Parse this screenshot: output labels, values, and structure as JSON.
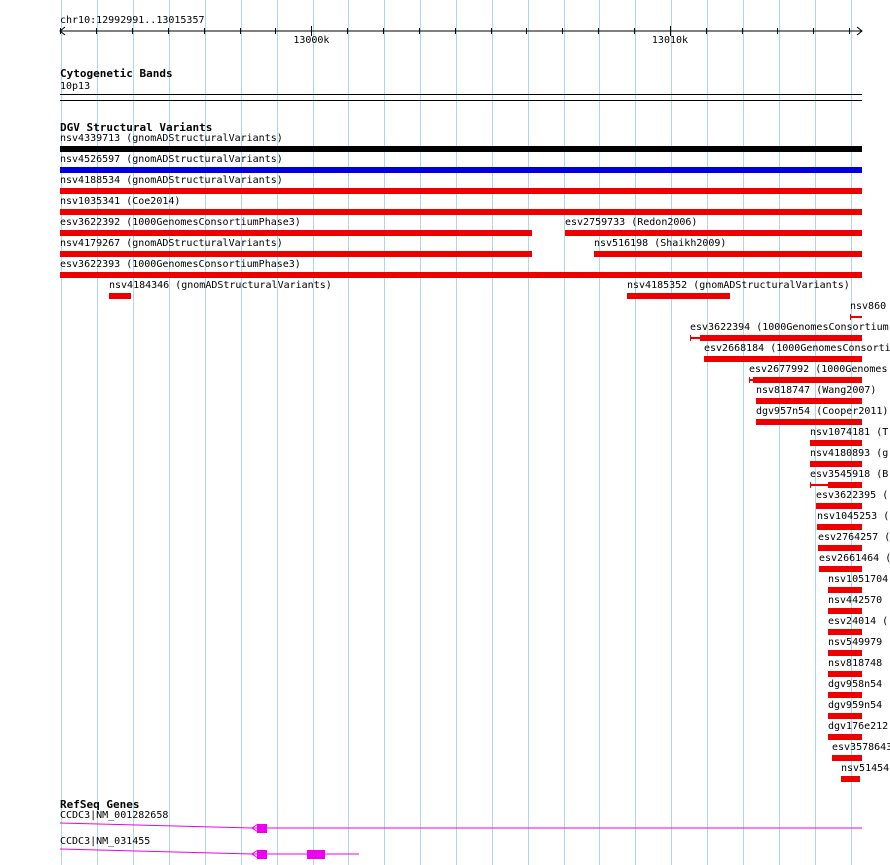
{
  "ruler": {
    "location": "chr10:12992991..13015357",
    "tick_labels": [
      "13000k",
      "13010k"
    ]
  },
  "cytoband": {
    "title": "Cytogenetic Bands",
    "band": "10p13"
  },
  "dgv": {
    "title": "DGV Structural Variants",
    "colors": {
      "default": "#ee0000",
      "black": "#000000",
      "blue": "#0000dd"
    },
    "features": [
      {
        "label": "nsv4339713 (gnomADStructuralVariants)",
        "start": 12992991,
        "end": 13015357,
        "color": "black"
      },
      {
        "label": "nsv4526597 (gnomADStructuralVariants)",
        "start": 12992991,
        "end": 13015357,
        "color": "blue"
      },
      {
        "label": "nsv4188534 (gnomADStructuralVariants)",
        "start": 12992991,
        "end": 13015357
      },
      {
        "label": "nsv1035341 (Coe2014)",
        "start": 12992991,
        "end": 13015357
      },
      {
        "label": "esv3622392 (1000GenomesConsortiumPhase3)",
        "start": 12992991,
        "end": 13006155
      },
      {
        "label": "esv2759733 (Redon2006)",
        "start": 13007077,
        "end": 13015357
      },
      {
        "label": "nsv4179267 (gnomADStructuralVariants)",
        "start": 12992991,
        "end": 13006155
      },
      {
        "label": "nsv516198 (Shaikh2009)",
        "start": 13007885,
        "end": 13015357
      },
      {
        "label": "esv3622393 (1000GenomesConsortiumPhase3)",
        "start": 12992991,
        "end": 13015357
      },
      {
        "label": "nsv4184346 (gnomADStructuralVariants)",
        "start": 12994356,
        "end": 12994970
      },
      {
        "label": "nsv4185352 (gnomADStructuralVariants)",
        "start": 13008810,
        "end": 13011672
      },
      {
        "label": "nsv860",
        "start": 13015023,
        "end": 13015357,
        "thin": true
      },
      {
        "label": "esv3622394 (1000GenomesConsortium",
        "start": 13010567,
        "end": 13015357,
        "thin_start": 13010846
      },
      {
        "label": "esv2668184 (1000GenomesConsorti",
        "start": 13010943,
        "end": 13015357
      },
      {
        "label": "esv2677992 (1000Genomes",
        "start": 13012199,
        "end": 13015357,
        "thin_start": 13012310
      },
      {
        "label": "nsv818747 (Wang2007)",
        "start": 13012393,
        "end": 13015357
      },
      {
        "label": "dgv957n54 (Cooper2011)",
        "start": 13012393,
        "end": 13015357
      },
      {
        "label": "nsv1074181 (T",
        "start": 13013899,
        "end": 13015357
      },
      {
        "label": "nsv4180893 (g",
        "start": 13013899,
        "end": 13015357
      },
      {
        "label": "esv3545918 (B",
        "start": 13013899,
        "end": 13015357,
        "thin_end": 13014415
      },
      {
        "label": "esv3622395 (",
        "start": 13014080,
        "end": 13015357,
        "thin_start": 13014108
      },
      {
        "label": "nsv1045253 (",
        "start": 13014108,
        "end": 13015357
      },
      {
        "label": "esv2764257 (",
        "start": 13014136,
        "end": 13015357
      },
      {
        "label": "esv2661464 (",
        "start": 13014163,
        "end": 13015357,
        "thin_start": 13014192
      },
      {
        "label": "nsv1051704",
        "start": 13014415,
        "end": 13015357
      },
      {
        "label": "nsv442570",
        "start": 13014415,
        "end": 13015357
      },
      {
        "label": "esv24014 (",
        "start": 13014415,
        "end": 13015357
      },
      {
        "label": "nsv549979",
        "start": 13014415,
        "end": 13015357
      },
      {
        "label": "nsv818748",
        "start": 13014415,
        "end": 13015357
      },
      {
        "label": "dgv958n54",
        "start": 13014415,
        "end": 13015357
      },
      {
        "label": "dgv959n54",
        "start": 13014415,
        "end": 13015357
      },
      {
        "label": "dgv176e212",
        "start": 13014415,
        "end": 13015357
      },
      {
        "label": "esv3578643",
        "start": 13014526,
        "end": 13015357
      },
      {
        "label": "nsv51454",
        "start": 13014778,
        "end": 13015302
      }
    ]
  },
  "refseq": {
    "title": "RefSeq Genes",
    "color": "#ee00ee",
    "genes": [
      {
        "label": "CCDC3|NM_001282658",
        "start": 12998339,
        "end": 13015357,
        "exons": [
          [
            12998478,
            12998771
          ]
        ]
      },
      {
        "label": "CCDC3|NM_031455",
        "start": 12998339,
        "end": 13001325,
        "exons": [
          [
            12998478,
            12998771
          ],
          [
            12999874,
            13000390
          ]
        ]
      }
    ]
  }
}
